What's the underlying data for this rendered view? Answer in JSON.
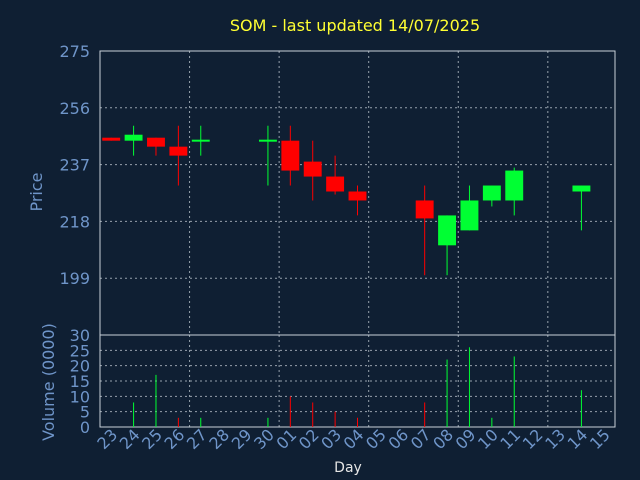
{
  "chart_data": [
    {
      "type": "candlestick",
      "title": "SOM - last updated 14/07/2025",
      "ylabel": "Price",
      "ylim": [
        180,
        275
      ],
      "yticks": [
        199,
        218,
        237,
        256,
        275
      ],
      "grid": true,
      "up_color": "#00ff33",
      "down_color": "#ff0000",
      "categories": [
        "23",
        "24",
        "25",
        "26",
        "27",
        "28",
        "29",
        "30",
        "01",
        "02",
        "03",
        "04",
        "05",
        "06",
        "07",
        "08",
        "09",
        "10",
        "11",
        "12",
        "13",
        "14",
        "15"
      ],
      "candles": [
        {
          "day": "23",
          "open": 246,
          "high": 246,
          "low": 245,
          "close": 245
        },
        {
          "day": "24",
          "open": 245,
          "high": 250,
          "low": 240,
          "close": 247
        },
        {
          "day": "25",
          "open": 246,
          "high": 246,
          "low": 240,
          "close": 243
        },
        {
          "day": "26",
          "open": 243,
          "high": 250,
          "low": 230,
          "close": 240
        },
        {
          "day": "27",
          "open": 245,
          "high": 250,
          "low": 240,
          "close": 245
        },
        {
          "day": "30",
          "open": 245,
          "high": 250,
          "low": 230,
          "close": 245
        },
        {
          "day": "01",
          "open": 245,
          "high": 250,
          "low": 230,
          "close": 235
        },
        {
          "day": "02",
          "open": 238,
          "high": 245,
          "low": 225,
          "close": 233
        },
        {
          "day": "03",
          "open": 233,
          "high": 240,
          "low": 227,
          "close": 228
        },
        {
          "day": "04",
          "open": 228,
          "high": 230,
          "low": 220,
          "close": 225
        },
        {
          "day": "07",
          "open": 225,
          "high": 230,
          "low": 200,
          "close": 219
        },
        {
          "day": "08",
          "open": 210,
          "high": 220,
          "low": 200,
          "close": 220
        },
        {
          "day": "09",
          "open": 215,
          "high": 230,
          "low": 215,
          "close": 225
        },
        {
          "day": "10",
          "open": 225,
          "high": 230,
          "low": 223,
          "close": 230
        },
        {
          "day": "11",
          "open": 225,
          "high": 236,
          "low": 220,
          "close": 235
        },
        {
          "day": "14",
          "open": 228,
          "high": 230,
          "low": 215,
          "close": 230
        }
      ]
    },
    {
      "type": "bar",
      "ylabel": "Volume (0000)",
      "xlabel": "Day",
      "ylim": [
        0,
        30
      ],
      "yticks": [
        0,
        5,
        10,
        15,
        20,
        25,
        30
      ],
      "grid": true,
      "categories": [
        "23",
        "24",
        "25",
        "26",
        "27",
        "28",
        "29",
        "30",
        "01",
        "02",
        "03",
        "04",
        "05",
        "06",
        "07",
        "08",
        "09",
        "10",
        "11",
        "12",
        "13",
        "14",
        "15"
      ],
      "bars": [
        {
          "day": "24",
          "value": 8,
          "color": "#00ff33"
        },
        {
          "day": "25",
          "value": 17,
          "color": "#00ff33"
        },
        {
          "day": "26",
          "value": 3,
          "color": "#ff0000"
        },
        {
          "day": "27",
          "value": 3,
          "color": "#00ff33"
        },
        {
          "day": "30",
          "value": 3,
          "color": "#00ff33"
        },
        {
          "day": "01",
          "value": 10,
          "color": "#ff0000"
        },
        {
          "day": "02",
          "value": 8,
          "color": "#ff0000"
        },
        {
          "day": "03",
          "value": 5,
          "color": "#ff0000"
        },
        {
          "day": "04",
          "value": 3,
          "color": "#ff0000"
        },
        {
          "day": "07",
          "value": 8,
          "color": "#ff0000"
        },
        {
          "day": "08",
          "value": 22,
          "color": "#00ff33"
        },
        {
          "day": "09",
          "value": 26,
          "color": "#00ff33"
        },
        {
          "day": "10",
          "value": 3,
          "color": "#00ff33"
        },
        {
          "day": "11",
          "value": 23,
          "color": "#00ff33"
        },
        {
          "day": "14",
          "value": 12,
          "color": "#00ff33"
        }
      ]
    }
  ]
}
